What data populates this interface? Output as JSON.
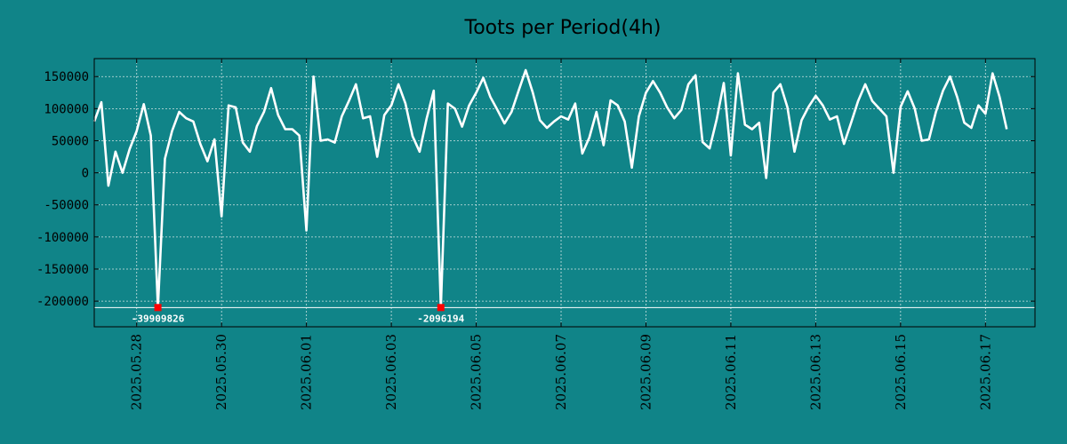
{
  "chart_data": {
    "type": "line",
    "title": "Toots per Period(4h)",
    "xlabel": "",
    "ylabel": "",
    "x_start": "2025-05-27 00:00",
    "x_end": "2025-06-18 04:00",
    "ylim": [
      -240000,
      178000
    ],
    "yticks": [
      150000,
      100000,
      50000,
      0,
      -50000,
      -100000,
      -150000,
      -200000
    ],
    "ytick_labels": [
      "150000",
      "100000",
      "50000",
      "0",
      "-50000",
      "-100000",
      "-150000",
      "-200000"
    ],
    "xticks": [
      "2025-05-28",
      "2025-05-30",
      "2025-06-01",
      "2025-06-03",
      "2025-06-05",
      "2025-06-07",
      "2025-06-09",
      "2025-06-11",
      "2025-06-13",
      "2025-06-15",
      "2025-06-17"
    ],
    "xtick_labels": [
      "2025.05.28",
      "2025.05.30",
      "2025.06.01",
      "2025.06.03",
      "2025.06.05",
      "2025.06.07",
      "2025.06.09",
      "2025.06.11",
      "2025.06.13",
      "2025.06.15",
      "2025.06.17"
    ],
    "grid": true,
    "reference_line_y": -210000,
    "series": [
      {
        "color": "#ffffff",
        "points": [
          [
            "2025-05-27 00:00",
            80000
          ],
          [
            "2025-05-27 04:00",
            110000
          ],
          [
            "2025-05-27 08:00",
            -20000
          ],
          [
            "2025-05-27 12:00",
            33000
          ],
          [
            "2025-05-27 16:00",
            0
          ],
          [
            "2025-05-27 20:00",
            37000
          ],
          [
            "2025-05-28 00:00",
            65000
          ],
          [
            "2025-05-28 04:00",
            107000
          ],
          [
            "2025-05-28 08:00",
            58000
          ],
          [
            "2025-05-28 12:00",
            -210000
          ],
          [
            "2025-05-28 16:00",
            22000
          ],
          [
            "2025-05-28 20:00",
            65000
          ],
          [
            "2025-05-29 00:00",
            95000
          ],
          [
            "2025-05-29 04:00",
            85000
          ],
          [
            "2025-05-29 08:00",
            80000
          ],
          [
            "2025-05-29 12:00",
            45000
          ],
          [
            "2025-05-29 16:00",
            18000
          ],
          [
            "2025-05-29 20:00",
            52000
          ],
          [
            "2025-05-30 00:00",
            -68000
          ],
          [
            "2025-05-30 04:00",
            105000
          ],
          [
            "2025-05-30 08:00",
            102000
          ],
          [
            "2025-05-30 12:00",
            47000
          ],
          [
            "2025-05-30 16:00",
            33000
          ],
          [
            "2025-05-30 20:00",
            73000
          ],
          [
            "2025-05-31 00:00",
            95000
          ],
          [
            "2025-05-31 04:00",
            132000
          ],
          [
            "2025-05-31 08:00",
            90000
          ],
          [
            "2025-05-31 12:00",
            68000
          ],
          [
            "2025-05-31 16:00",
            68000
          ],
          [
            "2025-05-31 20:00",
            58000
          ],
          [
            "2025-06-01 00:00",
            -90000
          ],
          [
            "2025-06-01 04:00",
            150000
          ],
          [
            "2025-06-01 08:00",
            50000
          ],
          [
            "2025-06-01 12:00",
            52000
          ],
          [
            "2025-06-01 16:00",
            47000
          ],
          [
            "2025-06-01 20:00",
            88000
          ],
          [
            "2025-06-02 00:00",
            112000
          ],
          [
            "2025-06-02 04:00",
            138000
          ],
          [
            "2025-06-02 08:00",
            85000
          ],
          [
            "2025-06-02 12:00",
            88000
          ],
          [
            "2025-06-02 16:00",
            25000
          ],
          [
            "2025-06-02 20:00",
            90000
          ],
          [
            "2025-06-03 00:00",
            105000
          ],
          [
            "2025-06-03 04:00",
            138000
          ],
          [
            "2025-06-03 08:00",
            108000
          ],
          [
            "2025-06-03 12:00",
            57000
          ],
          [
            "2025-06-03 16:00",
            33000
          ],
          [
            "2025-06-03 20:00",
            85000
          ],
          [
            "2025-06-04 00:00",
            128000
          ],
          [
            "2025-06-04 04:00",
            -210000
          ],
          [
            "2025-06-04 08:00",
            108000
          ],
          [
            "2025-06-04 12:00",
            100000
          ],
          [
            "2025-06-04 16:00",
            72000
          ],
          [
            "2025-06-04 20:00",
            105000
          ],
          [
            "2025-06-05 00:00",
            125000
          ],
          [
            "2025-06-05 04:00",
            148000
          ],
          [
            "2025-06-05 08:00",
            118000
          ],
          [
            "2025-06-05 12:00",
            98000
          ],
          [
            "2025-06-05 16:00",
            77000
          ],
          [
            "2025-06-05 20:00",
            95000
          ],
          [
            "2025-06-06 00:00",
            128000
          ],
          [
            "2025-06-06 04:00",
            160000
          ],
          [
            "2025-06-06 08:00",
            125000
          ],
          [
            "2025-06-06 12:00",
            82000
          ],
          [
            "2025-06-06 16:00",
            70000
          ],
          [
            "2025-06-06 20:00",
            80000
          ],
          [
            "2025-06-07 00:00",
            88000
          ],
          [
            "2025-06-07 04:00",
            83000
          ],
          [
            "2025-06-07 08:00",
            108000
          ],
          [
            "2025-06-07 12:00",
            30000
          ],
          [
            "2025-06-07 16:00",
            55000
          ],
          [
            "2025-06-07 20:00",
            95000
          ],
          [
            "2025-06-08 00:00",
            43000
          ],
          [
            "2025-06-08 04:00",
            113000
          ],
          [
            "2025-06-08 08:00",
            105000
          ],
          [
            "2025-06-08 12:00",
            80000
          ],
          [
            "2025-06-08 16:00",
            8000
          ],
          [
            "2025-06-08 20:00",
            88000
          ],
          [
            "2025-06-09 00:00",
            125000
          ],
          [
            "2025-06-09 04:00",
            143000
          ],
          [
            "2025-06-09 08:00",
            125000
          ],
          [
            "2025-06-09 12:00",
            102000
          ],
          [
            "2025-06-09 16:00",
            85000
          ],
          [
            "2025-06-09 20:00",
            98000
          ],
          [
            "2025-06-10 00:00",
            138000
          ],
          [
            "2025-06-10 04:00",
            152000
          ],
          [
            "2025-06-10 08:00",
            48000
          ],
          [
            "2025-06-10 12:00",
            38000
          ],
          [
            "2025-06-10 16:00",
            83000
          ],
          [
            "2025-06-10 20:00",
            140000
          ],
          [
            "2025-06-11 00:00",
            27000
          ],
          [
            "2025-06-11 04:00",
            155000
          ],
          [
            "2025-06-11 08:00",
            75000
          ],
          [
            "2025-06-11 12:00",
            68000
          ],
          [
            "2025-06-11 16:00",
            78000
          ],
          [
            "2025-06-11 20:00",
            -8000
          ],
          [
            "2025-06-12 00:00",
            125000
          ],
          [
            "2025-06-12 04:00",
            138000
          ],
          [
            "2025-06-12 08:00",
            102000
          ],
          [
            "2025-06-12 12:00",
            33000
          ],
          [
            "2025-06-12 16:00",
            82000
          ],
          [
            "2025-06-12 20:00",
            103000
          ],
          [
            "2025-06-13 00:00",
            120000
          ],
          [
            "2025-06-13 04:00",
            105000
          ],
          [
            "2025-06-13 08:00",
            83000
          ],
          [
            "2025-06-13 12:00",
            88000
          ],
          [
            "2025-06-13 16:00",
            45000
          ],
          [
            "2025-06-13 20:00",
            78000
          ],
          [
            "2025-06-14 00:00",
            112000
          ],
          [
            "2025-06-14 04:00",
            138000
          ],
          [
            "2025-06-14 08:00",
            112000
          ],
          [
            "2025-06-14 12:00",
            100000
          ],
          [
            "2025-06-14 16:00",
            88000
          ],
          [
            "2025-06-14 20:00",
            0
          ],
          [
            "2025-06-15 00:00",
            103000
          ],
          [
            "2025-06-15 04:00",
            127000
          ],
          [
            "2025-06-15 08:00",
            100000
          ],
          [
            "2025-06-15 12:00",
            50000
          ],
          [
            "2025-06-15 16:00",
            52000
          ],
          [
            "2025-06-15 20:00",
            95000
          ],
          [
            "2025-06-16 00:00",
            128000
          ],
          [
            "2025-06-16 04:00",
            150000
          ],
          [
            "2025-06-16 08:00",
            118000
          ],
          [
            "2025-06-16 12:00",
            78000
          ],
          [
            "2025-06-16 16:00",
            70000
          ],
          [
            "2025-06-16 20:00",
            105000
          ],
          [
            "2025-06-17 00:00",
            92000
          ],
          [
            "2025-06-17 04:00",
            155000
          ],
          [
            "2025-06-17 08:00",
            118000
          ],
          [
            "2025-06-17 12:00",
            68000
          ]
        ]
      }
    ],
    "annotations": [
      {
        "x": "2025-05-28 12:00",
        "y": -210000,
        "text": "-39909826",
        "marker_color": "#ff0000"
      },
      {
        "x": "2025-06-04 04:00",
        "y": -210000,
        "text": "-2096194",
        "marker_color": "#ff0000"
      }
    ],
    "colors": {
      "background": "#108488",
      "line": "#ffffff",
      "grid": "#cfe3e3",
      "axis": "#000000",
      "marker": "#ff0000"
    }
  }
}
